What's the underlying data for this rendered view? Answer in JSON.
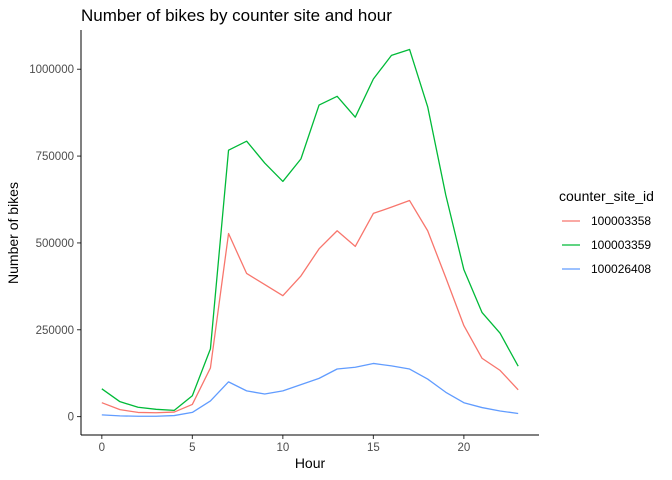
{
  "chart_data": {
    "type": "line",
    "title": "Number of bikes by counter site and hour",
    "xlabel": "Hour",
    "ylabel": "Number of bikes",
    "x": [
      0,
      1,
      2,
      3,
      4,
      5,
      6,
      7,
      8,
      9,
      10,
      11,
      12,
      13,
      14,
      15,
      16,
      17,
      18,
      19,
      20,
      21,
      22,
      23
    ],
    "xlim": [
      -1.15,
      24.15
    ],
    "ylim": [
      -53000,
      1113000
    ],
    "xticks": [
      0,
      5,
      10,
      15,
      20
    ],
    "xtick_labels": [
      "0",
      "5",
      "10",
      "15",
      "20"
    ],
    "yticks": [
      0,
      250000,
      500000,
      750000,
      1000000
    ],
    "ytick_labels": [
      "0",
      "250000",
      "500000",
      "750000",
      "1000000"
    ],
    "grid": false,
    "legend_title": "counter_site_id",
    "legend_position": "right",
    "series": [
      {
        "name": "100003358",
        "color": "#F8766D",
        "values": [
          40000,
          20000,
          12000,
          11000,
          13000,
          35000,
          140000,
          527000,
          412000,
          380000,
          348000,
          405000,
          483000,
          535000,
          490000,
          585000,
          603000,
          622000,
          535000,
          400000,
          262000,
          168000,
          133000,
          77000
        ]
      },
      {
        "name": "100003359",
        "color": "#00BA38",
        "values": [
          80000,
          43000,
          27000,
          21000,
          18000,
          60000,
          195000,
          767000,
          793000,
          730000,
          677000,
          742000,
          897000,
          922000,
          862000,
          972000,
          1040000,
          1057000,
          892000,
          638000,
          423000,
          300000,
          240000,
          145000
        ]
      },
      {
        "name": "100026408",
        "color": "#619CFF",
        "values": [
          5000,
          2000,
          1000,
          1000,
          3000,
          12000,
          45000,
          100000,
          74000,
          65000,
          74000,
          92000,
          110000,
          137000,
          142000,
          153000,
          146000,
          137000,
          108000,
          70000,
          40000,
          26000,
          16000,
          9000
        ]
      }
    ]
  }
}
